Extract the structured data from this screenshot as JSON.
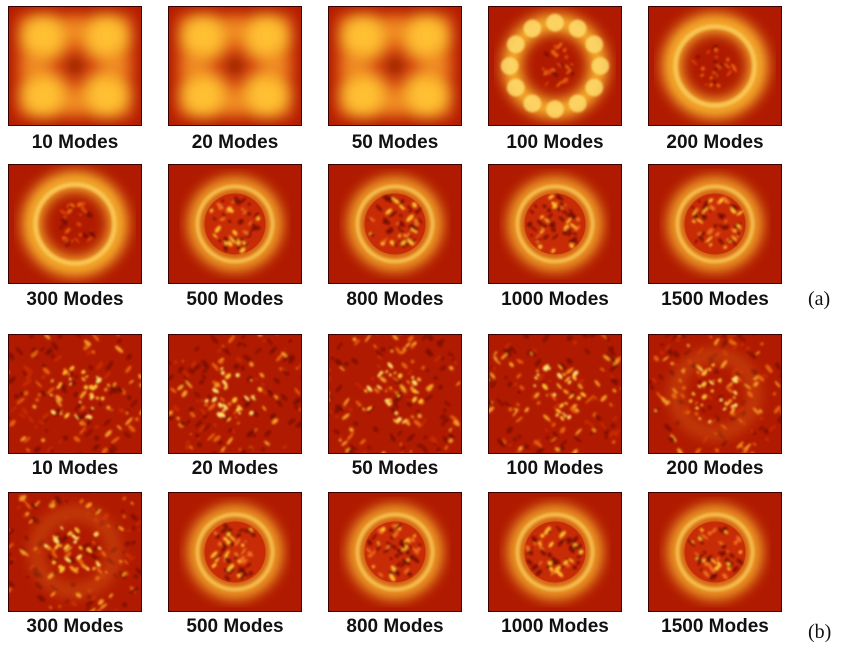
{
  "panels": [
    {
      "id": "a",
      "label": "(a)",
      "rows": [
        [
          {
            "caption": "10 Modes",
            "pattern": "quad-lobes"
          },
          {
            "caption": "20 Modes",
            "pattern": "quad-lobes"
          },
          {
            "caption": "50 Modes",
            "pattern": "quad-lobes"
          },
          {
            "caption": "100 Modes",
            "pattern": "beaded-ring"
          },
          {
            "caption": "200 Modes",
            "pattern": "ring"
          }
        ],
        [
          {
            "caption": "300 Modes",
            "pattern": "ring"
          },
          {
            "caption": "500 Modes",
            "pattern": "ring-speckled-core"
          },
          {
            "caption": "800 Modes",
            "pattern": "ring-speckled-core"
          },
          {
            "caption": "1000 Modes",
            "pattern": "ring-speckled-core"
          },
          {
            "caption": "1500 Modes",
            "pattern": "ring-speckled-core"
          }
        ]
      ]
    },
    {
      "id": "b",
      "label": "(b)",
      "rows": [
        [
          {
            "caption": "10 Modes",
            "pattern": "speckle"
          },
          {
            "caption": "20 Modes",
            "pattern": "speckle"
          },
          {
            "caption": "50 Modes",
            "pattern": "speckle"
          },
          {
            "caption": "100 Modes",
            "pattern": "speckle"
          },
          {
            "caption": "200 Modes",
            "pattern": "speckle-faint-ring"
          }
        ],
        [
          {
            "caption": "300 Modes",
            "pattern": "speckle-faint-ring"
          },
          {
            "caption": "500 Modes",
            "pattern": "ring-speckled-core"
          },
          {
            "caption": "800 Modes",
            "pattern": "ring-speckled-core"
          },
          {
            "caption": "1000 Modes",
            "pattern": "ring-speckled-core"
          },
          {
            "caption": "1500 Modes",
            "pattern": "ring-speckled-core"
          }
        ]
      ]
    }
  ],
  "colors": {
    "background": "#b01a00",
    "mid": "#d8420a",
    "bright": "#ffc030",
    "peak": "#ffe070",
    "dark": "#7a0a00"
  }
}
